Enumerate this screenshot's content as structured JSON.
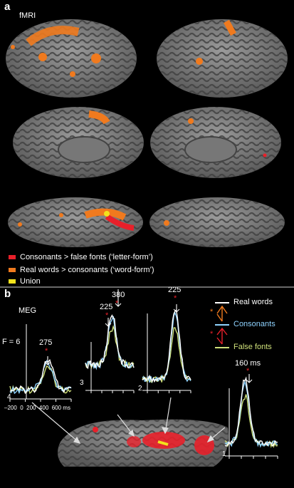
{
  "panel_a": {
    "letter": "a",
    "tag": "fMRI",
    "legend": [
      {
        "label": "Consonants > false fonts (‘letter-form’)",
        "color": "#e8202a"
      },
      {
        "label": "Real words > consonants (‘word-form’)",
        "color": "#f07a1e"
      },
      {
        "label": "Union",
        "color": "#f2e21c"
      }
    ]
  },
  "panel_b": {
    "letter": "b",
    "tag": "MEG",
    "scale_label": "F = 6",
    "x_axis_label": "–200  0  200  400  600 ms",
    "legend": [
      {
        "label": "Real words",
        "color": "#ffffff"
      },
      {
        "label": "Consonants",
        "color": "#8fd3ff"
      },
      {
        "label": "False fonts",
        "color": "#cfe07a"
      }
    ],
    "plots": [
      {
        "id": "4",
        "peak_label": "275"
      },
      {
        "id": "3",
        "peak_label": "225",
        "peak_label_2": "380"
      },
      {
        "id": "2",
        "peak_label": "225"
      },
      {
        "id": "1",
        "peak_label": "160 ms"
      }
    ],
    "star": "*"
  },
  "colors": {
    "red": "#e8202a",
    "orange": "#f07a1e",
    "yellow": "#f2e21c",
    "brain_light": "#8a8a8a",
    "brain_dark": "#4e4e4e"
  }
}
